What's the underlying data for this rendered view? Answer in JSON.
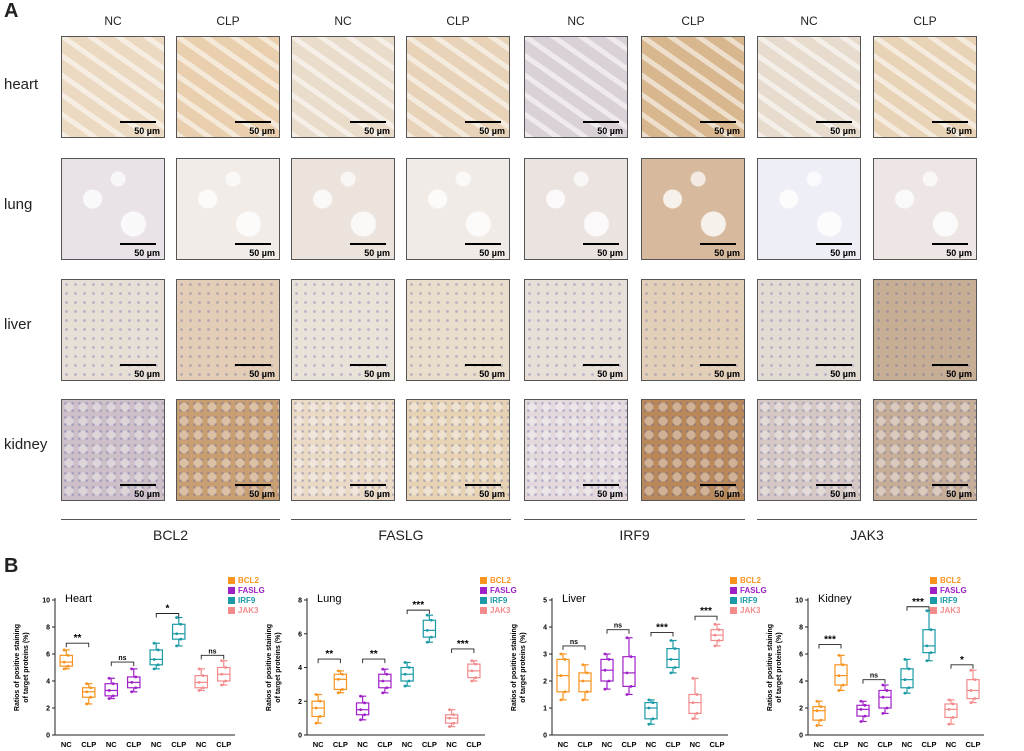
{
  "panel_a": {
    "letter": "A",
    "columns": [
      "NC",
      "CLP",
      "NC",
      "CLP",
      "NC",
      "CLP",
      "NC",
      "CLP"
    ],
    "rows": [
      "heart",
      "lung",
      "liver",
      "kidney"
    ],
    "scale": "50 µm",
    "groups": [
      "BCL2",
      "FASLG",
      "IRF9",
      "JAK3"
    ]
  },
  "panel_b": {
    "letter": "B"
  },
  "colors": {
    "BCL2": "#f7931e",
    "FASLG": "#a020c8",
    "IRF9": "#1a9aa6",
    "JAK3": "#f28b8b"
  },
  "chart_data": [
    {
      "type": "box",
      "title": "Heart",
      "ylabel": "Ratios of positive staining of target proteins (%)",
      "ylim": [
        0,
        10
      ],
      "yticks": [
        0,
        2,
        4,
        6,
        8,
        10
      ],
      "categories": [
        "NC",
        "CLP",
        "NC",
        "CLP",
        "NC",
        "CLP",
        "NC",
        "CLP"
      ],
      "legend": [
        "BCL2",
        "FASLG",
        "IRF9",
        "JAK3"
      ],
      "boxes": [
        {
          "series": "BCL2",
          "min": 4.9,
          "q1": 5.1,
          "med": 5.4,
          "q3": 5.9,
          "max": 6.3
        },
        {
          "series": "BCL2",
          "min": 2.3,
          "q1": 2.8,
          "med": 3.2,
          "q3": 3.5,
          "max": 3.8
        },
        {
          "series": "FASLG",
          "min": 2.7,
          "q1": 2.9,
          "med": 3.3,
          "q3": 3.8,
          "max": 4.2
        },
        {
          "series": "FASLG",
          "min": 3.2,
          "q1": 3.5,
          "med": 3.9,
          "q3": 4.3,
          "max": 4.9
        },
        {
          "series": "IRF9",
          "min": 4.9,
          "q1": 5.2,
          "med": 5.6,
          "q3": 6.3,
          "max": 6.8
        },
        {
          "series": "IRF9",
          "min": 6.6,
          "q1": 7.1,
          "med": 7.5,
          "q3": 8.2,
          "max": 8.7
        },
        {
          "series": "JAK3",
          "min": 3.3,
          "q1": 3.5,
          "med": 3.9,
          "q3": 4.4,
          "max": 4.9
        },
        {
          "series": "JAK3",
          "min": 3.7,
          "q1": 4.0,
          "med": 4.5,
          "q3": 5.0,
          "max": 5.5
        }
      ],
      "sig": [
        {
          "pair": [
            0,
            1
          ],
          "label": "**",
          "y": 6.8
        },
        {
          "pair": [
            2,
            3
          ],
          "label": "ns",
          "y": 5.4
        },
        {
          "pair": [
            4,
            5
          ],
          "label": "*",
          "y": 9.0
        },
        {
          "pair": [
            6,
            7
          ],
          "label": "ns",
          "y": 5.9
        }
      ]
    },
    {
      "type": "box",
      "title": "Lung",
      "ylabel": "Ratios of positive staining of target proteins (%)",
      "ylim": [
        0,
        8
      ],
      "yticks": [
        0,
        2,
        4,
        6,
        8
      ],
      "categories": [
        "NC",
        "CLP",
        "NC",
        "CLP",
        "NC",
        "CLP",
        "NC",
        "CLP"
      ],
      "legend": [
        "BCL2",
        "FASLG",
        "IRF9",
        "JAK3"
      ],
      "boxes": [
        {
          "series": "BCL2",
          "min": 0.7,
          "q1": 1.1,
          "med": 1.6,
          "q3": 2.0,
          "max": 2.4
        },
        {
          "series": "BCL2",
          "min": 2.5,
          "q1": 2.7,
          "med": 3.3,
          "q3": 3.6,
          "max": 3.8
        },
        {
          "series": "FASLG",
          "min": 0.9,
          "q1": 1.2,
          "med": 1.5,
          "q3": 1.9,
          "max": 2.3
        },
        {
          "series": "FASLG",
          "min": 2.5,
          "q1": 2.8,
          "med": 3.2,
          "q3": 3.6,
          "max": 3.9
        },
        {
          "series": "IRF9",
          "min": 2.9,
          "q1": 3.2,
          "med": 3.6,
          "q3": 4.0,
          "max": 4.3
        },
        {
          "series": "IRF9",
          "min": 5.5,
          "q1": 5.8,
          "med": 6.2,
          "q3": 6.8,
          "max": 7.1
        },
        {
          "series": "JAK3",
          "min": 0.5,
          "q1": 0.7,
          "med": 1.0,
          "q3": 1.2,
          "max": 1.5
        },
        {
          "series": "JAK3",
          "min": 3.2,
          "q1": 3.4,
          "med": 3.8,
          "q3": 4.2,
          "max": 4.4
        }
      ],
      "sig": [
        {
          "pair": [
            0,
            1
          ],
          "label": "**",
          "y": 4.5
        },
        {
          "pair": [
            2,
            3
          ],
          "label": "**",
          "y": 4.5
        },
        {
          "pair": [
            4,
            5
          ],
          "label": "***",
          "y": 7.4
        },
        {
          "pair": [
            6,
            7
          ],
          "label": "***",
          "y": 5.1
        }
      ]
    },
    {
      "type": "box",
      "title": "Liver",
      "ylabel": "Ratios of positive staining of target proteins (%)",
      "ylim": [
        0,
        5
      ],
      "yticks": [
        0,
        1,
        2,
        3,
        4,
        5
      ],
      "categories": [
        "NC",
        "CLP",
        "NC",
        "CLP",
        "NC",
        "CLP",
        "NC",
        "CLP"
      ],
      "legend": [
        "BCL2",
        "FASLG",
        "IRF9",
        "JAK3"
      ],
      "boxes": [
        {
          "series": "BCL2",
          "min": 1.3,
          "q1": 1.6,
          "med": 2.2,
          "q3": 2.8,
          "max": 3.0
        },
        {
          "series": "BCL2",
          "min": 1.3,
          "q1": 1.6,
          "med": 2.0,
          "q3": 2.3,
          "max": 2.6
        },
        {
          "series": "FASLG",
          "min": 1.7,
          "q1": 2.0,
          "med": 2.4,
          "q3": 2.8,
          "max": 3.0
        },
        {
          "series": "FASLG",
          "min": 1.5,
          "q1": 1.8,
          "med": 2.3,
          "q3": 2.9,
          "max": 3.6
        },
        {
          "series": "IRF9",
          "min": 0.4,
          "q1": 0.6,
          "med": 1.0,
          "q3": 1.2,
          "max": 1.3
        },
        {
          "series": "IRF9",
          "min": 2.3,
          "q1": 2.5,
          "med": 2.8,
          "q3": 3.2,
          "max": 3.5
        },
        {
          "series": "JAK3",
          "min": 0.6,
          "q1": 0.8,
          "med": 1.2,
          "q3": 1.5,
          "max": 2.1
        },
        {
          "series": "JAK3",
          "min": 3.3,
          "q1": 3.5,
          "med": 3.7,
          "q3": 3.9,
          "max": 4.1
        }
      ],
      "sig": [
        {
          "pair": [
            0,
            1
          ],
          "label": "ns",
          "y": 3.3
        },
        {
          "pair": [
            2,
            3
          ],
          "label": "ns",
          "y": 3.9
        },
        {
          "pair": [
            4,
            5
          ],
          "label": "***",
          "y": 3.8
        },
        {
          "pair": [
            6,
            7
          ],
          "label": "***",
          "y": 4.4
        }
      ]
    },
    {
      "type": "box",
      "title": "Kidney",
      "ylabel": "Ratios of positive staining of target proteins (%)",
      "ylim": [
        0,
        10
      ],
      "yticks": [
        0,
        2,
        4,
        6,
        8,
        10
      ],
      "categories": [
        "NC",
        "CLP",
        "NC",
        "CLP",
        "NC",
        "CLP",
        "NC",
        "CLP"
      ],
      "legend": [
        "BCL2",
        "FASLG",
        "IRF9",
        "JAK3"
      ],
      "boxes": [
        {
          "series": "BCL2",
          "min": 0.7,
          "q1": 1.1,
          "med": 1.8,
          "q3": 2.1,
          "max": 2.5
        },
        {
          "series": "BCL2",
          "min": 3.3,
          "q1": 3.7,
          "med": 4.4,
          "q3": 5.2,
          "max": 5.9
        },
        {
          "series": "FASLG",
          "min": 1.0,
          "q1": 1.4,
          "med": 1.9,
          "q3": 2.2,
          "max": 2.5
        },
        {
          "series": "FASLG",
          "min": 1.6,
          "q1": 2.0,
          "med": 2.8,
          "q3": 3.3,
          "max": 3.7
        },
        {
          "series": "IRF9",
          "min": 3.1,
          "q1": 3.5,
          "med": 4.1,
          "q3": 4.9,
          "max": 5.6
        },
        {
          "series": "IRF9",
          "min": 5.5,
          "q1": 6.1,
          "med": 6.6,
          "q3": 7.8,
          "max": 9.2
        },
        {
          "series": "JAK3",
          "min": 0.8,
          "q1": 1.3,
          "med": 1.9,
          "q3": 2.3,
          "max": 2.6
        },
        {
          "series": "JAK3",
          "min": 2.4,
          "q1": 2.7,
          "med": 3.3,
          "q3": 4.1,
          "max": 4.8
        }
      ],
      "sig": [
        {
          "pair": [
            0,
            1
          ],
          "label": "***",
          "y": 6.7
        },
        {
          "pair": [
            2,
            3
          ],
          "label": "ns",
          "y": 4.1
        },
        {
          "pair": [
            4,
            5
          ],
          "label": "***",
          "y": 9.5
        },
        {
          "pair": [
            6,
            7
          ],
          "label": "*",
          "y": 5.2
        }
      ]
    }
  ]
}
